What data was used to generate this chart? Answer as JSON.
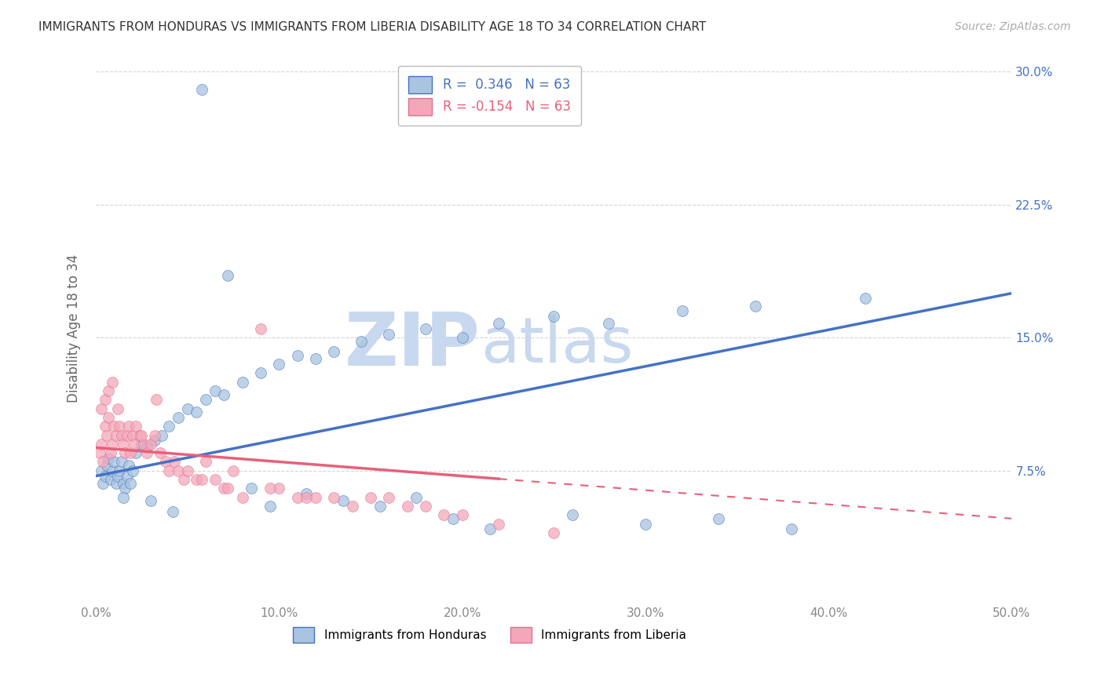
{
  "title": "IMMIGRANTS FROM HONDURAS VS IMMIGRANTS FROM LIBERIA DISABILITY AGE 18 TO 34 CORRELATION CHART",
  "source": "Source: ZipAtlas.com",
  "ylabel": "Disability Age 18 to 34",
  "xlim": [
    0.0,
    0.5
  ],
  "ylim": [
    0.0,
    0.31
  ],
  "xticks": [
    0.0,
    0.1,
    0.2,
    0.3,
    0.4,
    0.5
  ],
  "xtick_labels": [
    "0.0%",
    "10.0%",
    "20.0%",
    "30.0%",
    "40.0%",
    "50.0%"
  ],
  "yticks": [
    0.0,
    0.075,
    0.15,
    0.225,
    0.3
  ],
  "ytick_labels_right": [
    "",
    "7.5%",
    "15.0%",
    "22.5%",
    "30.0%"
  ],
  "R_honduras": 0.346,
  "N_honduras": 63,
  "R_liberia": -0.154,
  "N_liberia": 63,
  "color_honduras": "#a8c4e0",
  "color_liberia": "#f4a7b9",
  "trendline_honduras": "#4472c4",
  "trendline_liberia": "#e8607a",
  "watermark_zip": "ZIP",
  "watermark_atlas": "atlas",
  "watermark_color": "#c8d8ee",
  "background_color": "#ffffff",
  "legend_text_color": "#4472c4",
  "legend_text_color2": "#e8607a",
  "honduras_x": [
    0.003,
    0.004,
    0.005,
    0.006,
    0.007,
    0.008,
    0.009,
    0.01,
    0.011,
    0.012,
    0.013,
    0.014,
    0.015,
    0.016,
    0.017,
    0.018,
    0.019,
    0.02,
    0.022,
    0.025,
    0.028,
    0.032,
    0.036,
    0.04,
    0.045,
    0.05,
    0.055,
    0.06,
    0.065,
    0.07,
    0.08,
    0.09,
    0.1,
    0.11,
    0.12,
    0.13,
    0.145,
    0.16,
    0.18,
    0.2,
    0.22,
    0.25,
    0.28,
    0.32,
    0.36,
    0.42,
    0.015,
    0.03,
    0.042,
    0.058,
    0.072,
    0.085,
    0.095,
    0.115,
    0.135,
    0.155,
    0.175,
    0.195,
    0.215,
    0.26,
    0.3,
    0.34,
    0.38
  ],
  "honduras_y": [
    0.075,
    0.068,
    0.072,
    0.078,
    0.082,
    0.07,
    0.075,
    0.08,
    0.068,
    0.072,
    0.075,
    0.08,
    0.068,
    0.065,
    0.072,
    0.078,
    0.068,
    0.075,
    0.085,
    0.09,
    0.088,
    0.092,
    0.095,
    0.1,
    0.105,
    0.11,
    0.108,
    0.115,
    0.12,
    0.118,
    0.125,
    0.13,
    0.135,
    0.14,
    0.138,
    0.142,
    0.148,
    0.152,
    0.155,
    0.15,
    0.158,
    0.162,
    0.158,
    0.165,
    0.168,
    0.172,
    0.06,
    0.058,
    0.052,
    0.29,
    0.185,
    0.065,
    0.055,
    0.062,
    0.058,
    0.055,
    0.06,
    0.048,
    0.042,
    0.05,
    0.045,
    0.048,
    0.042
  ],
  "liberia_x": [
    0.002,
    0.003,
    0.004,
    0.005,
    0.006,
    0.007,
    0.008,
    0.009,
    0.01,
    0.011,
    0.012,
    0.013,
    0.014,
    0.015,
    0.016,
    0.017,
    0.018,
    0.019,
    0.02,
    0.021,
    0.022,
    0.024,
    0.026,
    0.028,
    0.03,
    0.032,
    0.035,
    0.038,
    0.04,
    0.043,
    0.045,
    0.048,
    0.05,
    0.055,
    0.06,
    0.065,
    0.07,
    0.075,
    0.08,
    0.09,
    0.1,
    0.11,
    0.12,
    0.13,
    0.14,
    0.15,
    0.16,
    0.17,
    0.18,
    0.19,
    0.2,
    0.22,
    0.25,
    0.003,
    0.005,
    0.007,
    0.009,
    0.025,
    0.033,
    0.058,
    0.072,
    0.095,
    0.115
  ],
  "liberia_y": [
    0.085,
    0.09,
    0.08,
    0.1,
    0.095,
    0.105,
    0.085,
    0.09,
    0.1,
    0.095,
    0.11,
    0.1,
    0.095,
    0.09,
    0.085,
    0.095,
    0.1,
    0.085,
    0.095,
    0.09,
    0.1,
    0.095,
    0.09,
    0.085,
    0.09,
    0.095,
    0.085,
    0.08,
    0.075,
    0.08,
    0.075,
    0.07,
    0.075,
    0.07,
    0.08,
    0.07,
    0.065,
    0.075,
    0.06,
    0.155,
    0.065,
    0.06,
    0.06,
    0.06,
    0.055,
    0.06,
    0.06,
    0.055,
    0.055,
    0.05,
    0.05,
    0.045,
    0.04,
    0.11,
    0.115,
    0.12,
    0.125,
    0.095,
    0.115,
    0.07,
    0.065,
    0.065,
    0.06
  ],
  "trendline_h_x0": 0.0,
  "trendline_h_y0": 0.072,
  "trendline_h_x1": 0.5,
  "trendline_h_y1": 0.175,
  "trendline_l_x0": 0.0,
  "trendline_l_y0": 0.088,
  "trendline_l_x1": 0.5,
  "trendline_l_y1": 0.048,
  "trendline_l_solid_end": 0.22,
  "trendline_l_dash_start": 0.22
}
